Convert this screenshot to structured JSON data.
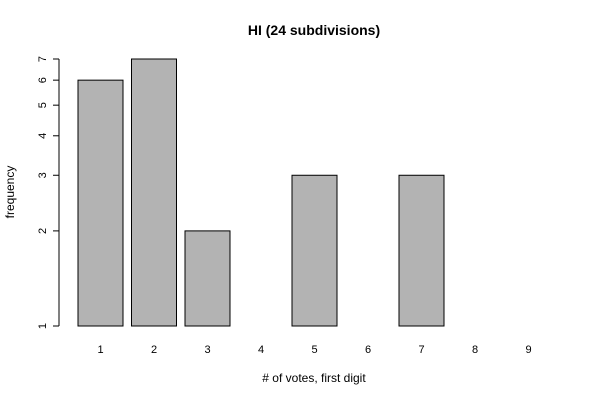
{
  "chart_data": {
    "type": "bar",
    "title": "HI (24 subdivisions)",
    "xlabel": "# of votes, first digit",
    "ylabel": "frequency",
    "categories": [
      "1",
      "2",
      "3",
      "4",
      "5",
      "6",
      "7",
      "8",
      "9"
    ],
    "values": [
      6,
      7,
      2,
      1,
      3,
      1,
      3,
      1,
      0
    ],
    "y_scale": "log",
    "y_ticks": [
      1,
      2,
      3,
      4,
      5,
      6,
      7
    ],
    "ylim": [
      1,
      7
    ],
    "grid": false,
    "legend": "none",
    "bar_fill": "#b3b3b3",
    "bar_stroke": "#000000"
  }
}
